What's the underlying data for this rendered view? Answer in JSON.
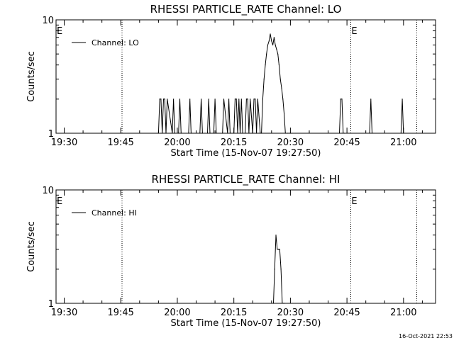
{
  "footer": {
    "timestamp": "16-Oct-2021 22:53"
  },
  "chart_data": [
    {
      "type": "line",
      "title": "RHESSI PARTICLE_RATE Channel: LO",
      "xlabel": "Start Time (15-Nov-07 19:27:50)",
      "ylabel": "Counts/sec",
      "y_scale": "log",
      "xlim": [
        "19:27:50",
        "21:08:30"
      ],
      "ylim": [
        1,
        10
      ],
      "x_ticks": [
        "19:30",
        "19:45",
        "20:00",
        "20:15",
        "20:30",
        "20:45",
        "21:00"
      ],
      "y_ticks": [
        "1",
        "10"
      ],
      "legend": {
        "placement": "top-left",
        "entries": [
          "Channel: LO"
        ]
      },
      "eclipse_markers": [
        {
          "time": "19:27:50",
          "label": "E",
          "style": "none"
        },
        {
          "time": "19:45:20",
          "label": "",
          "style": "dotted"
        },
        {
          "time": "20:46:00",
          "label": "E",
          "style": "dotted"
        },
        {
          "time": "21:03:30",
          "label": "",
          "style": "dotted"
        }
      ],
      "series": [
        {
          "x": [
            "19:55:00",
            "19:55:20",
            "19:55:40",
            "19:56:00",
            "19:56:20",
            "19:56:40",
            "19:57:00",
            "19:57:20",
            "19:58:40",
            "19:59:00",
            "19:59:20",
            "20:00:20",
            "20:00:40",
            "20:01:00",
            "20:03:00",
            "20:03:20",
            "20:03:40",
            "20:06:00",
            "20:06:20",
            "20:06:40",
            "20:08:00",
            "20:08:20",
            "20:08:40",
            "20:09:40",
            "20:10:00",
            "20:10:20",
            "20:12:00",
            "20:12:20",
            "20:13:20",
            "20:13:40",
            "20:14:00",
            "20:15:00",
            "20:15:20",
            "20:15:40",
            "20:16:00",
            "20:16:20",
            "20:16:40",
            "20:17:00",
            "20:17:20",
            "20:18:00",
            "20:18:20",
            "20:18:40",
            "20:19:00",
            "20:19:20",
            "20:20:00",
            "20:20:20",
            "20:20:40",
            "20:21:00",
            "20:21:20",
            "20:22:00",
            "20:22:20",
            "20:22:40",
            "20:23:00",
            "20:23:20",
            "20:23:40",
            "20:24:00",
            "20:24:20",
            "20:24:40",
            "20:25:00",
            "20:25:20",
            "20:25:40",
            "20:26:00",
            "20:26:20",
            "20:26:40",
            "20:27:00",
            "20:27:20",
            "20:27:40",
            "20:28:00",
            "20:28:20",
            "20:28:40",
            "20:29:00",
            "20:29:20",
            "20:29:40",
            "20:30:00",
            "20:30:20",
            "20:43:00",
            "20:43:20",
            "20:43:40",
            "20:44:00",
            "20:44:20",
            "20:51:00",
            "20:51:20",
            "20:51:40",
            "20:59:20",
            "20:59:40",
            "21:00:00"
          ],
          "y": [
            1,
            2,
            2,
            1,
            2,
            2,
            1,
            2,
            1,
            2,
            1,
            1,
            2,
            1,
            1,
            2,
            1,
            1,
            2,
            1,
            1,
            2,
            1,
            1,
            2,
            1,
            1,
            2,
            1,
            2,
            1,
            1,
            2,
            2,
            1,
            2,
            1,
            2,
            1,
            1,
            2,
            2,
            1,
            2,
            1,
            2,
            2,
            1,
            2,
            1,
            1,
            2,
            3,
            4,
            5,
            6,
            6.5,
            7.5,
            6.5,
            6,
            7,
            6,
            5.5,
            5,
            4,
            3,
            2.5,
            2,
            1.5,
            1,
            1,
            1,
            1,
            1,
            1,
            1,
            2,
            2,
            1,
            1,
            1,
            2,
            1,
            1,
            2,
            1
          ],
          "name": "Channel: LO"
        }
      ]
    },
    {
      "type": "line",
      "title": "RHESSI PARTICLE_RATE Channel: HI",
      "xlabel": "Start Time (15-Nov-07 19:27:50)",
      "ylabel": "Counts/sec",
      "y_scale": "log",
      "xlim": [
        "19:27:50",
        "21:08:30"
      ],
      "ylim": [
        1,
        10
      ],
      "x_ticks": [
        "19:30",
        "19:45",
        "20:00",
        "20:15",
        "20:30",
        "20:45",
        "21:00"
      ],
      "y_ticks": [
        "1",
        "10"
      ],
      "legend": {
        "placement": "top-left",
        "entries": [
          "Channel: HI"
        ]
      },
      "eclipse_markers": [
        {
          "time": "19:27:50",
          "label": "E",
          "style": "none"
        },
        {
          "time": "19:45:20",
          "label": "",
          "style": "dotted"
        },
        {
          "time": "20:46:00",
          "label": "E",
          "style": "dotted"
        },
        {
          "time": "21:03:30",
          "label": "",
          "style": "dotted"
        }
      ],
      "series": [
        {
          "x": [
            "20:25:30",
            "20:25:50",
            "20:26:10",
            "20:26:30",
            "20:26:50",
            "20:27:10",
            "20:27:30",
            "20:27:50",
            "20:28:10",
            "20:28:30"
          ],
          "y": [
            1,
            2,
            4,
            3,
            3,
            3,
            2,
            1,
            1,
            1
          ],
          "name": "Channel: HI"
        }
      ]
    }
  ]
}
